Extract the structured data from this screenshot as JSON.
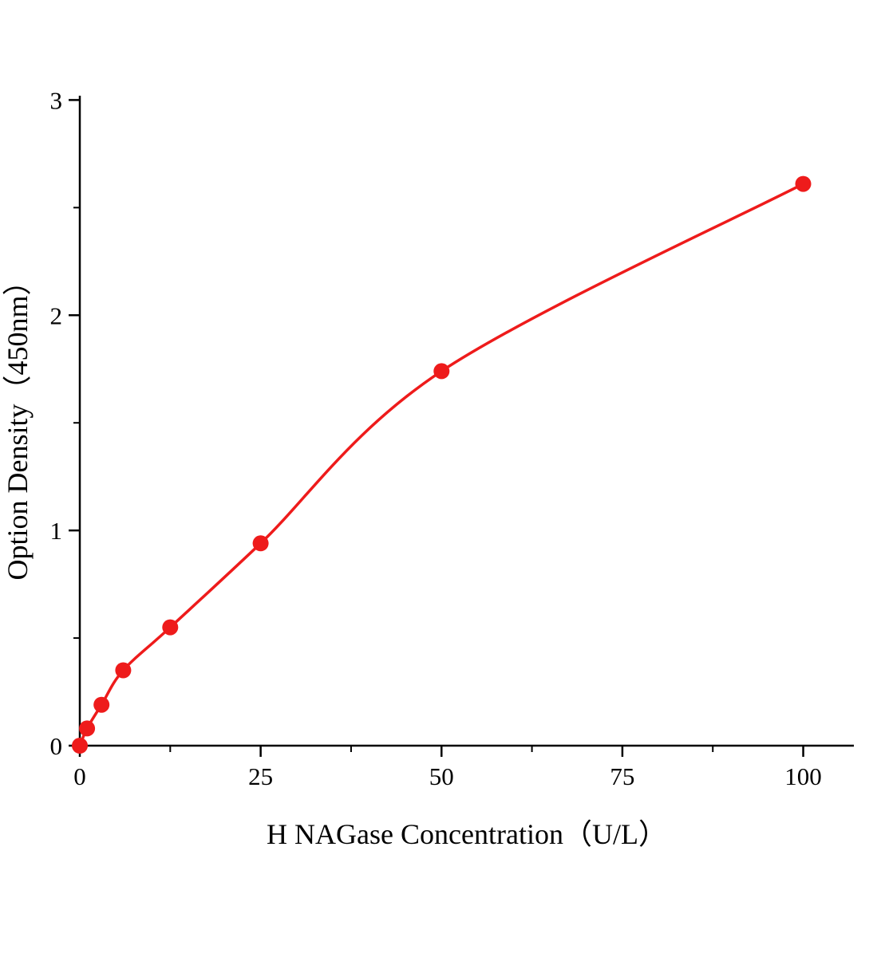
{
  "chart_data": {
    "type": "scatter",
    "title": "",
    "xlabel": "H NAGase Concentration（U/L）",
    "ylabel": "Option Density（450nm）",
    "series": [
      {
        "x": [
          0,
          1,
          3,
          6,
          12.5,
          25,
          50,
          100
        ],
        "y": [
          0,
          0.08,
          0.19,
          0.35,
          0.55,
          0.94,
          1.74,
          2.61
        ],
        "color": "#ee1b1b",
        "marker": "circle",
        "line": "smooth-fit-curve"
      }
    ],
    "xticks": [
      0,
      25,
      50,
      75,
      100
    ],
    "yticks": [
      0,
      1,
      2,
      3
    ],
    "x_minor_ticks": [
      12.5,
      37.5,
      62.5,
      87.5
    ],
    "y_minor_ticks": [
      0.5,
      1.5,
      2.5
    ],
    "xlim": [
      0,
      107
    ],
    "ylim": [
      0,
      3.02
    ],
    "grid": false,
    "legend": "none",
    "axis_color": "#000000"
  }
}
